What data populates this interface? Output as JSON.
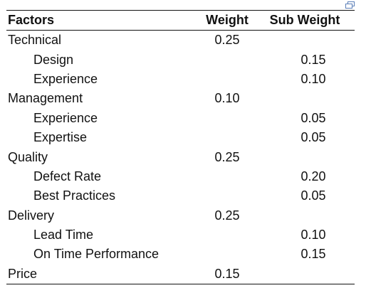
{
  "table": {
    "headers": {
      "factors": "Factors",
      "weight": "Weight",
      "sub_weight": "Sub Weight"
    },
    "rows": [
      {
        "label": "Technical",
        "weight": "0.25",
        "sub_weight": "",
        "level": 0
      },
      {
        "label": "Design",
        "weight": "",
        "sub_weight": "0.15",
        "level": 1
      },
      {
        "label": "Experience",
        "weight": "",
        "sub_weight": "0.10",
        "level": 1
      },
      {
        "label": "Management",
        "weight": "0.10",
        "sub_weight": "",
        "level": 0
      },
      {
        "label": "Experience",
        "weight": "",
        "sub_weight": "0.05",
        "level": 1
      },
      {
        "label": "Expertise",
        "weight": "",
        "sub_weight": "0.05",
        "level": 1
      },
      {
        "label": "Quality",
        "weight": "0.25",
        "sub_weight": "",
        "level": 0
      },
      {
        "label": "Defect Rate",
        "weight": "",
        "sub_weight": "0.20",
        "level": 1
      },
      {
        "label": "Best Practices",
        "weight": "",
        "sub_weight": "0.05",
        "level": 1
      },
      {
        "label": "Delivery",
        "weight": "0.25",
        "sub_weight": "",
        "level": 0
      },
      {
        "label": "Lead Time",
        "weight": "",
        "sub_weight": "0.10",
        "level": 1
      },
      {
        "label": "On Time Performance",
        "weight": "",
        "sub_weight": "0.15",
        "level": 1
      },
      {
        "label": "Price",
        "weight": "0.15",
        "sub_weight": "",
        "level": 0
      }
    ]
  },
  "icons": {
    "expand": "expand-table-icon"
  },
  "colors": {
    "icon": "#5b7fb8",
    "text": "#111111",
    "rule": "#111111"
  }
}
